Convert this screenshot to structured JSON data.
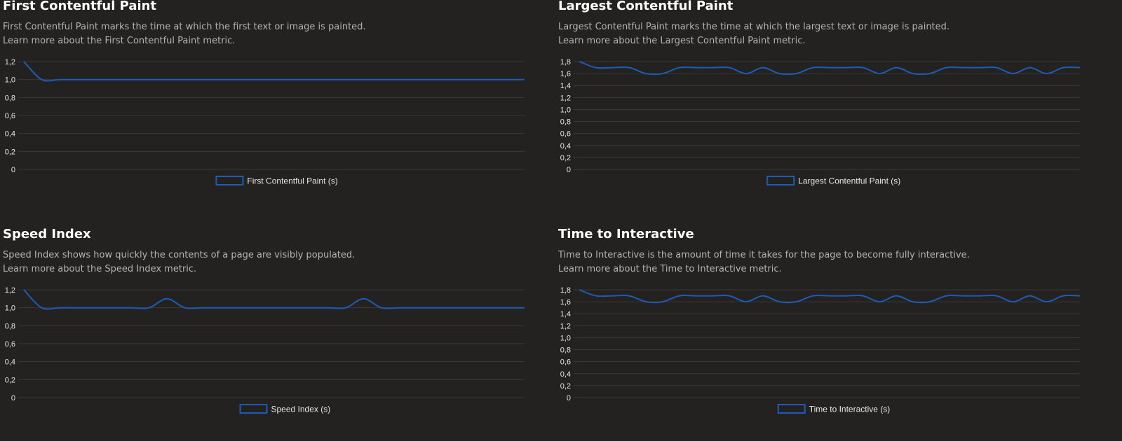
{
  "colors": {
    "background": "#232221",
    "series": "#1f5bb5",
    "grid": "#3a3938"
  },
  "chart_data": [
    {
      "type": "line",
      "title": "First Contentful Paint",
      "description": "First Contentful Paint marks the time at which the first text or image is painted.",
      "learn_more": "Learn more about the First Contentful Paint metric.",
      "yticks": [
        "0",
        "0,2",
        "0,4",
        "0,6",
        "0,8",
        "1,0",
        "1,2"
      ],
      "ylim": [
        0,
        1.2
      ],
      "grid": true,
      "legend_position": "bottom-center",
      "series": [
        {
          "name": "First Contentful Paint (s)",
          "values": [
            1.2,
            1.0,
            1.0,
            1.0,
            1.0,
            1.0,
            1.0,
            1.0,
            1.0,
            1.0,
            1.0,
            1.0,
            1.0,
            1.0,
            1.0,
            1.0,
            1.0,
            1.0,
            1.0,
            1.0,
            1.0,
            1.0,
            1.0,
            1.0,
            1.0,
            1.0,
            1.0,
            1.0,
            1.0
          ]
        }
      ]
    },
    {
      "type": "line",
      "title": "Largest Contentful Paint",
      "description": "Largest Contentful Paint marks the time at which the largest text or image is painted.",
      "learn_more": "Learn more about the Largest Contentful Paint metric.",
      "yticks": [
        "0",
        "0,2",
        "0,4",
        "0,6",
        "0,8",
        "1,0",
        "1,2",
        "1,4",
        "1,6",
        "1,8"
      ],
      "ylim": [
        0,
        1.8
      ],
      "grid": true,
      "legend_position": "bottom-center",
      "series": [
        {
          "name": "Largest Contentful Paint (s)",
          "values": [
            1.8,
            1.7,
            1.7,
            1.7,
            1.6,
            1.6,
            1.7,
            1.7,
            1.7,
            1.7,
            1.6,
            1.7,
            1.6,
            1.6,
            1.7,
            1.7,
            1.7,
            1.7,
            1.6,
            1.7,
            1.6,
            1.6,
            1.7,
            1.7,
            1.7,
            1.7,
            1.6,
            1.7,
            1.6,
            1.7,
            1.7
          ]
        }
      ]
    },
    {
      "type": "line",
      "title": "Speed Index",
      "description": "Speed Index shows how quickly the contents of a page are visibly populated.",
      "learn_more": "Learn more about the Speed Index metric.",
      "yticks": [
        "0",
        "0,2",
        "0,4",
        "0,6",
        "0,8",
        "1,0",
        "1,2"
      ],
      "ylim": [
        0,
        1.2
      ],
      "grid": true,
      "legend_position": "bottom-center",
      "series": [
        {
          "name": "Speed Index (s)",
          "values": [
            1.2,
            1.0,
            1.0,
            1.0,
            1.0,
            1.0,
            1.0,
            1.0,
            1.1,
            1.0,
            1.0,
            1.0,
            1.0,
            1.0,
            1.0,
            1.0,
            1.0,
            1.0,
            1.0,
            1.1,
            1.0,
            1.0,
            1.0,
            1.0,
            1.0,
            1.0,
            1.0,
            1.0,
            1.0
          ]
        }
      ]
    },
    {
      "type": "line",
      "title": "Time to Interactive",
      "description": "Time to Interactive is the amount of time it takes for the page to become fully interactive.",
      "learn_more": "Learn more about the Time to Interactive metric.",
      "yticks": [
        "0",
        "0,2",
        "0,4",
        "0,6",
        "0,8",
        "1,0",
        "1,2",
        "1,4",
        "1,6",
        "1,8"
      ],
      "ylim": [
        0,
        1.8
      ],
      "grid": true,
      "legend_position": "bottom-center",
      "series": [
        {
          "name": "Time to Interactive (s)",
          "values": [
            1.8,
            1.7,
            1.7,
            1.7,
            1.6,
            1.6,
            1.7,
            1.7,
            1.7,
            1.7,
            1.6,
            1.7,
            1.6,
            1.6,
            1.7,
            1.7,
            1.7,
            1.7,
            1.6,
            1.7,
            1.6,
            1.6,
            1.7,
            1.7,
            1.7,
            1.7,
            1.6,
            1.7,
            1.6,
            1.7,
            1.7
          ]
        }
      ]
    }
  ]
}
